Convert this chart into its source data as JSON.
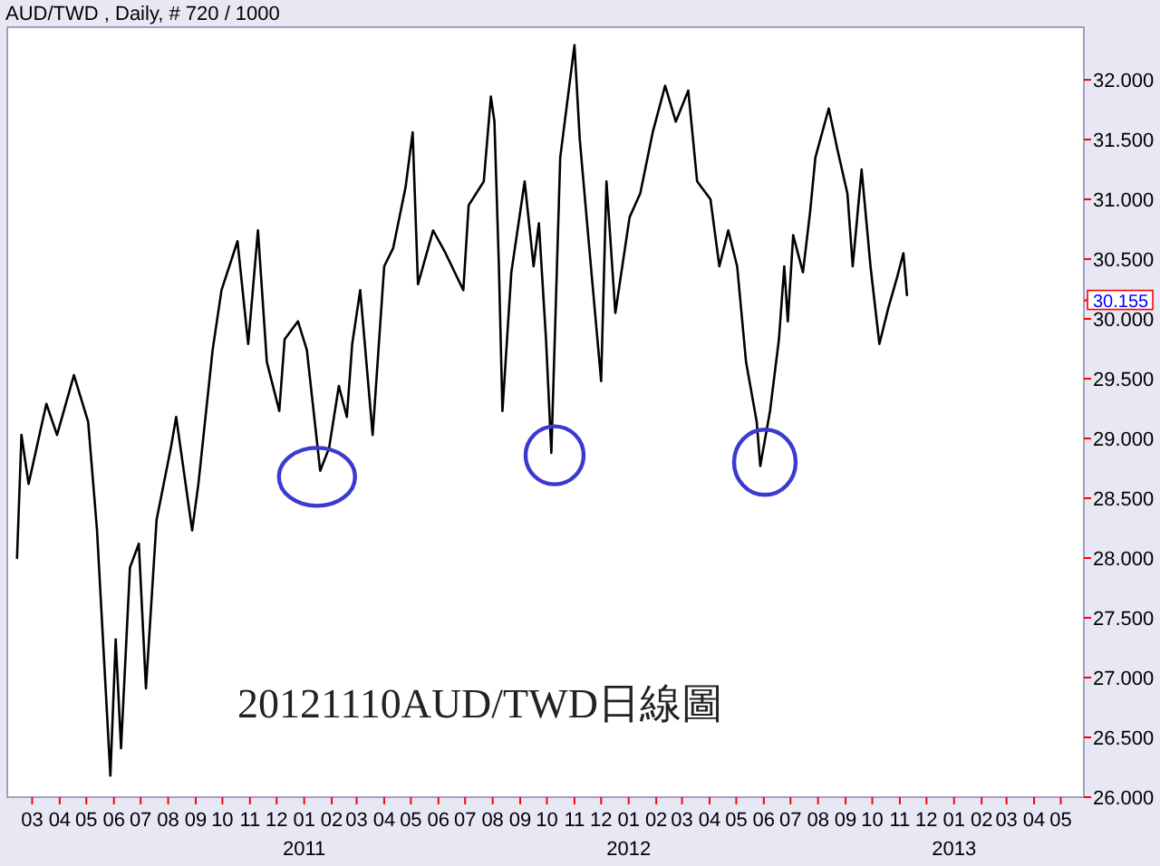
{
  "chart_data": {
    "type": "line",
    "title": "AUD/TWD , Daily, # 720 / 1000",
    "annotations": [
      "20121110AUD/TWD日線圖"
    ],
    "xlim": [
      "2010-02-01",
      "2013-05-27"
    ],
    "xticks": [
      {
        "value": "2010-03-01",
        "label": "03"
      },
      {
        "value": "2010-04-01",
        "label": "04"
      },
      {
        "value": "2010-05-01",
        "label": "05"
      },
      {
        "value": "2010-06-01",
        "label": "06"
      },
      {
        "value": "2010-07-01",
        "label": "07"
      },
      {
        "value": "2010-08-01",
        "label": "08"
      },
      {
        "value": "2010-09-01",
        "label": "09"
      },
      {
        "value": "2010-10-01",
        "label": "10"
      },
      {
        "value": "2010-11-01",
        "label": "11"
      },
      {
        "value": "2010-12-01",
        "label": "12"
      },
      {
        "value": "2011-01-01",
        "label": "01\n2011"
      },
      {
        "value": "2011-02-01",
        "label": "02"
      },
      {
        "value": "2011-03-01",
        "label": "03"
      },
      {
        "value": "2011-04-01",
        "label": "04"
      },
      {
        "value": "2011-05-01",
        "label": "05"
      },
      {
        "value": "2011-06-01",
        "label": "06"
      },
      {
        "value": "2011-07-01",
        "label": "07"
      },
      {
        "value": "2011-08-01",
        "label": "08"
      },
      {
        "value": "2011-09-01",
        "label": "09"
      },
      {
        "value": "2011-10-01",
        "label": "10"
      },
      {
        "value": "2011-11-01",
        "label": "11"
      },
      {
        "value": "2011-12-01",
        "label": "12"
      },
      {
        "value": "2012-01-01",
        "label": "01\n2012"
      },
      {
        "value": "2012-02-01",
        "label": "02"
      },
      {
        "value": "2012-03-01",
        "label": "03"
      },
      {
        "value": "2012-04-01",
        "label": "04"
      },
      {
        "value": "2012-05-01",
        "label": "05"
      },
      {
        "value": "2012-06-01",
        "label": "06"
      },
      {
        "value": "2012-07-01",
        "label": "07"
      },
      {
        "value": "2012-08-01",
        "label": "08"
      },
      {
        "value": "2012-09-01",
        "label": "09"
      },
      {
        "value": "2012-10-01",
        "label": "10"
      },
      {
        "value": "2012-11-01",
        "label": "11"
      },
      {
        "value": "2012-12-01",
        "label": "12"
      },
      {
        "value": "2013-01-01",
        "label": "01\n2013"
      },
      {
        "value": "2013-02-01",
        "label": "02"
      },
      {
        "value": "2013-03-01",
        "label": "03"
      },
      {
        "value": "2013-04-01",
        "label": "04"
      },
      {
        "value": "2013-05-01",
        "label": "05"
      }
    ],
    "ylim": [
      26,
      32.44
    ],
    "yticks": [
      {
        "value": 26,
        "label": "26.000"
      },
      {
        "value": 26.5,
        "label": "26.500"
      },
      {
        "value": 27,
        "label": "27.000"
      },
      {
        "value": 27.5,
        "label": "27.500"
      },
      {
        "value": 28,
        "label": "28.000"
      },
      {
        "value": 28.5,
        "label": "28.500"
      },
      {
        "value": 29,
        "label": "29.000"
      },
      {
        "value": 29.5,
        "label": "29.500"
      },
      {
        "value": 30,
        "label": "30.000"
      },
      {
        "value": 30.155,
        "label": "30.155"
      },
      {
        "value": 30.5,
        "label": "30.500"
      },
      {
        "value": 31,
        "label": "31.000"
      },
      {
        "value": 31.5,
        "label": "31.500"
      },
      {
        "value": 32,
        "label": "32.000"
      }
    ],
    "grid": false,
    "series": [
      {
        "color": "#000000",
        "x": [
          "2010-02-12",
          "2010-02-17",
          "2010-02-25",
          "2010-03-17",
          "2010-03-29",
          "2010-04-17",
          "2010-05-03",
          "2010-05-13",
          "2010-05-28",
          "2010-06-03",
          "2010-06-09",
          "2010-06-19",
          "2010-06-29",
          "2010-07-07",
          "2010-07-19",
          "2010-08-04",
          "2010-08-10",
          "2010-08-28",
          "2010-09-04",
          "2010-09-20",
          "2010-09-30",
          "2010-10-18",
          "2010-10-30",
          "2010-11-10",
          "2010-11-20",
          "2010-12-04",
          "2010-12-10",
          "2010-12-25",
          "2011-01-04",
          "2011-01-19",
          "2011-01-29",
          "2011-02-09",
          "2011-02-18",
          "2011-02-24",
          "2011-03-05",
          "2011-03-19",
          "2011-04-01",
          "2011-04-11",
          "2011-04-25",
          "2011-05-03",
          "2011-05-09",
          "2011-05-26",
          "2011-06-09",
          "2011-06-29",
          "2011-07-05",
          "2011-07-22",
          "2011-07-30",
          "2011-08-03",
          "2011-08-08",
          "2011-08-12",
          "2011-08-22",
          "2011-09-06",
          "2011-09-16",
          "2011-09-22",
          "2011-09-30",
          "2011-10-06",
          "2011-10-16",
          "2011-11-01",
          "2011-11-07",
          "2011-11-17",
          "2011-12-01",
          "2011-12-07",
          "2011-12-17",
          "2012-01-02",
          "2012-01-14",
          "2012-01-28",
          "2012-02-11",
          "2012-02-23",
          "2012-03-08",
          "2012-03-18",
          "2012-04-02",
          "2012-04-12",
          "2012-04-22",
          "2012-05-02",
          "2012-05-12",
          "2012-05-24",
          "2012-05-28",
          "2012-06-08",
          "2012-06-18",
          "2012-06-24",
          "2012-06-28",
          "2012-07-04",
          "2012-07-15",
          "2012-07-23",
          "2012-07-29",
          "2012-08-13",
          "2012-08-23",
          "2012-09-03",
          "2012-09-09",
          "2012-09-19",
          "2012-09-29",
          "2012-10-09",
          "2012-10-19",
          "2012-10-29",
          "2012-11-05",
          "2012-11-09"
        ],
        "values": [
          28.0,
          29.03,
          28.62,
          29.29,
          29.03,
          29.53,
          29.14,
          28.23,
          26.18,
          27.32,
          26.41,
          27.92,
          28.12,
          26.91,
          28.32,
          28.92,
          29.18,
          28.23,
          28.62,
          29.74,
          30.24,
          30.65,
          29.79,
          30.74,
          29.64,
          29.23,
          29.83,
          29.98,
          29.74,
          28.73,
          28.92,
          29.44,
          29.18,
          29.79,
          30.24,
          29.03,
          30.44,
          30.59,
          31.1,
          31.56,
          30.29,
          30.74,
          30.55,
          30.24,
          30.95,
          31.15,
          31.86,
          31.65,
          30.44,
          29.23,
          30.39,
          31.15,
          30.44,
          30.8,
          29.83,
          28.88,
          31.35,
          32.29,
          31.5,
          30.65,
          29.48,
          31.15,
          30.05,
          30.85,
          31.05,
          31.56,
          31.95,
          31.65,
          31.91,
          31.15,
          31.0,
          30.44,
          30.74,
          30.44,
          29.64,
          29.14,
          28.77,
          29.23,
          29.83,
          30.44,
          29.98,
          30.7,
          30.39,
          30.89,
          31.35,
          31.76,
          31.41,
          31.05,
          30.44,
          31.25,
          30.44,
          29.79,
          30.09,
          30.35,
          30.55,
          30.2
        ]
      }
    ]
  }
}
